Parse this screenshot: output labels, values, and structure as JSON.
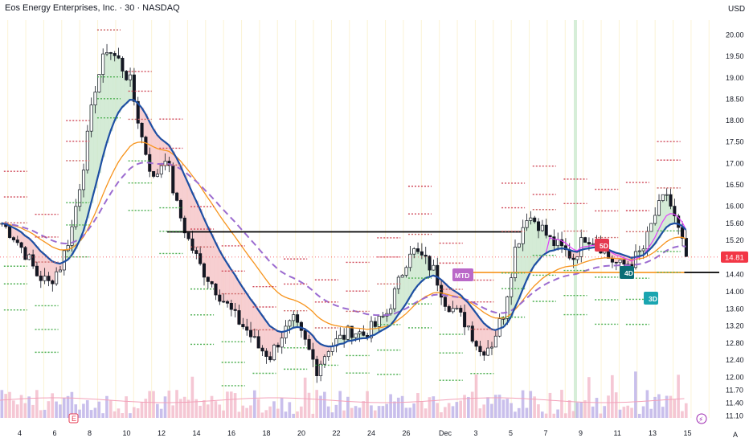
{
  "header": {
    "symbol_title": "Eos Energy Enterprises, Inc. · 30 · NASDAQ",
    "currency": "USD",
    "auto_label": "A"
  },
  "chart_data": {
    "type": "candlestick",
    "title": "Eos Energy Enterprises, Inc. · 30 · NASDAQ",
    "currency": "USD",
    "last_price": "14.81",
    "y_ticks": [
      "20.00",
      "19.50",
      "19.00",
      "18.50",
      "18.00",
      "17.50",
      "17.00",
      "16.50",
      "16.00",
      "15.60",
      "15.20",
      "14.80",
      "14.40",
      "14.00",
      "13.60",
      "13.20",
      "12.80",
      "12.40",
      "12.00",
      "11.70",
      "11.40",
      "11.10"
    ],
    "x_ticks": [
      "4",
      "6",
      "8",
      "10",
      "12",
      "14",
      "16",
      "18",
      "20",
      "22",
      "24",
      "26",
      "Dec",
      "3",
      "5",
      "7",
      "9",
      "11",
      "13",
      "15"
    ],
    "price_path": [
      [
        0,
        15.6
      ],
      [
        3,
        15.3
      ],
      [
        6,
        14.9
      ],
      [
        9,
        14.4
      ],
      [
        12,
        14.2
      ],
      [
        15,
        14.6
      ],
      [
        18,
        15.5
      ],
      [
        21,
        17.0
      ],
      [
        24,
        18.8
      ],
      [
        27,
        19.7
      ],
      [
        30,
        19.4
      ],
      [
        33,
        18.9
      ],
      [
        36,
        17.6
      ],
      [
        39,
        16.6
      ],
      [
        42,
        17.2
      ],
      [
        45,
        16.0
      ],
      [
        48,
        15.2
      ],
      [
        51,
        14.6
      ],
      [
        54,
        14.2
      ],
      [
        57,
        13.8
      ],
      [
        60,
        13.4
      ],
      [
        63,
        13.1
      ],
      [
        66,
        12.7
      ],
      [
        69,
        12.5
      ],
      [
        72,
        13.0
      ],
      [
        75,
        13.3
      ],
      [
        78,
        12.8
      ],
      [
        81,
        12.2
      ],
      [
        84,
        12.7
      ],
      [
        87,
        12.9
      ],
      [
        90,
        13.1
      ],
      [
        93,
        13.0
      ],
      [
        96,
        13.2
      ],
      [
        99,
        13.5
      ],
      [
        102,
        14.2
      ],
      [
        105,
        15.0
      ],
      [
        108,
        14.8
      ],
      [
        111,
        14.5
      ],
      [
        114,
        13.8
      ],
      [
        117,
        13.5
      ],
      [
        120,
        13.2
      ],
      [
        123,
        12.6
      ],
      [
        126,
        12.8
      ],
      [
        129,
        13.5
      ],
      [
        132,
        15.0
      ],
      [
        135,
        15.8
      ],
      [
        138,
        15.6
      ],
      [
        141,
        15.2
      ],
      [
        144,
        15.0
      ],
      [
        147,
        14.8
      ],
      [
        150,
        15.3
      ],
      [
        153,
        15.2
      ],
      [
        156,
        14.8
      ],
      [
        159,
        14.6
      ],
      [
        162,
        14.7
      ],
      [
        165,
        15.0
      ],
      [
        168,
        15.8
      ],
      [
        171,
        16.3
      ],
      [
        174,
        15.4
      ],
      [
        176,
        14.81
      ]
    ],
    "indicators": [
      "EMA blue",
      "SMA orange",
      "MA purple dashed",
      "VWAP magenta",
      "Pivot dotted levels"
    ],
    "horizontal_lines": [
      15.4,
      14.45
    ],
    "vertical_highlight_bar": 148,
    "labels": [
      {
        "text": "MTD",
        "color": "#ba68c8"
      },
      {
        "text": "5D",
        "color": "#e53950"
      },
      {
        "text": "4D",
        "color": "#0a6e76"
      },
      {
        "text": "3D",
        "color": "#1aa5b0"
      }
    ],
    "volume_markers": [
      {
        "text": "E",
        "color": "#e53950"
      },
      {
        "text": "⚡",
        "color": "#9c27b0"
      }
    ]
  }
}
